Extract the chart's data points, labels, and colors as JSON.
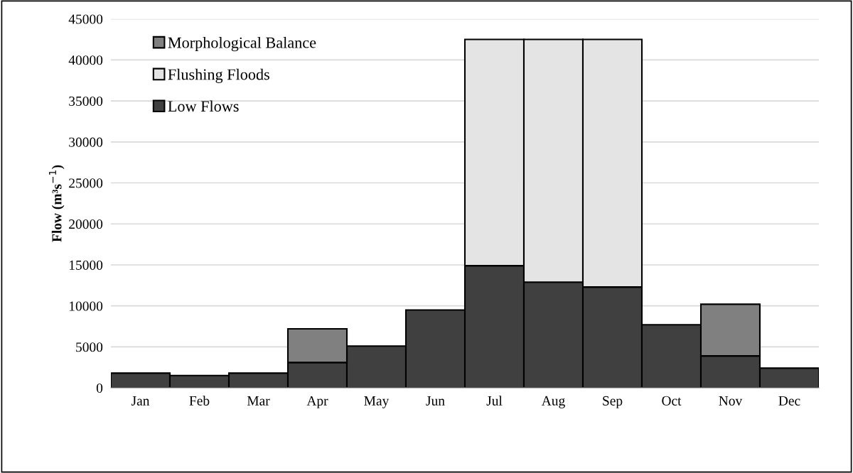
{
  "chart_data": {
    "type": "bar",
    "stacked": true,
    "ylabel": "Flow (m³s$^{−1}$)",
    "categories": [
      "Jan",
      "Feb",
      "Mar",
      "Apr",
      "May",
      "Jun",
      "Jul",
      "Aug",
      "Sep",
      "Oct",
      "Nov",
      "Dec"
    ],
    "series": [
      {
        "name": "Low Flows",
        "color": "#404040",
        "values": [
          1800,
          1500,
          1800,
          3100,
          5100,
          9500,
          14900,
          12900,
          12300,
          7700,
          3900,
          2400
        ]
      },
      {
        "name": "Flushing Floods",
        "color": "#e4e4e4",
        "values": [
          null,
          null,
          null,
          null,
          null,
          null,
          27600,
          29600,
          30200,
          null,
          null,
          null
        ]
      },
      {
        "name": "Morphological Balance",
        "color": "#808080",
        "values": [
          null,
          null,
          null,
          4100,
          null,
          null,
          null,
          null,
          null,
          null,
          6300,
          null
        ]
      }
    ],
    "ylim": [
      0,
      45000
    ],
    "yticks": [
      0,
      5000,
      10000,
      15000,
      20000,
      25000,
      30000,
      35000,
      40000,
      45000
    ],
    "grid": "y",
    "legend": "top left"
  }
}
